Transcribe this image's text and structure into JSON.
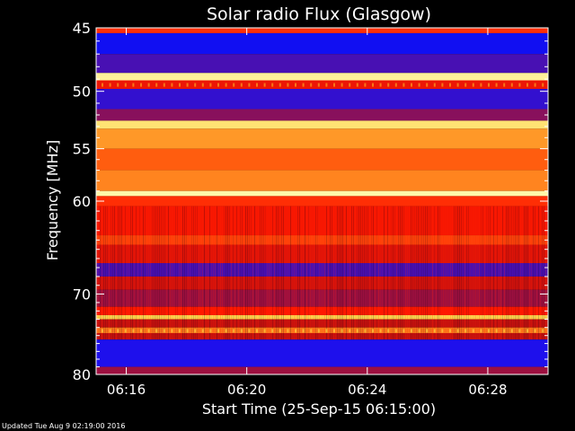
{
  "chart_data": {
    "type": "heatmap",
    "title": "Solar radio Flux (Glasgow)",
    "xlabel": "Start Time (25-Sep-15 06:15:00)",
    "ylabel": "Frequency [MHz]",
    "x_range": [
      "06:15:00",
      "06:30:00"
    ],
    "y_range": [
      45,
      80
    ],
    "y_scale": "log",
    "x_ticks": [
      "06:16",
      "06:20",
      "06:24",
      "06:28"
    ],
    "y_ticks": [
      45,
      50,
      55,
      60,
      70,
      80
    ],
    "colormap": [
      "#1a0a78",
      "#1010ff",
      "#c01010",
      "#ff1800",
      "#ff6010",
      "#ffd040",
      "#ffffc0"
    ],
    "frequency_bands": [
      {
        "f_start": 45.0,
        "f_end": 45.4,
        "level": 0.55
      },
      {
        "f_start": 45.4,
        "f_end": 47.0,
        "level": 0.15
      },
      {
        "f_start": 47.0,
        "f_end": 48.5,
        "level": 0.22
      },
      {
        "f_start": 48.5,
        "f_end": 49.1,
        "level": 0.95
      },
      {
        "f_start": 49.1,
        "f_end": 49.8,
        "level": 0.45
      },
      {
        "f_start": 49.8,
        "f_end": 51.5,
        "level": 0.2
      },
      {
        "f_start": 51.5,
        "f_end": 52.5,
        "level": 0.28
      },
      {
        "f_start": 52.5,
        "f_end": 53.2,
        "level": 0.9
      },
      {
        "f_start": 53.2,
        "f_end": 55.0,
        "level": 0.75
      },
      {
        "f_start": 55.0,
        "f_end": 57.0,
        "level": 0.66
      },
      {
        "f_start": 57.0,
        "f_end": 59.0,
        "level": 0.72
      },
      {
        "f_start": 59.0,
        "f_end": 59.5,
        "level": 0.97
      },
      {
        "f_start": 59.5,
        "f_end": 60.5,
        "level": 0.55
      },
      {
        "f_start": 60.5,
        "f_end": 63.5,
        "level": 0.48
      },
      {
        "f_start": 63.5,
        "f_end": 64.5,
        "level": 0.6
      },
      {
        "f_start": 64.5,
        "f_end": 66.5,
        "level": 0.42
      },
      {
        "f_start": 66.5,
        "f_end": 68.0,
        "level": 0.22
      },
      {
        "f_start": 68.0,
        "f_end": 69.5,
        "level": 0.38
      },
      {
        "f_start": 69.5,
        "f_end": 71.5,
        "level": 0.3
      },
      {
        "f_start": 71.5,
        "f_end": 72.5,
        "level": 0.5
      },
      {
        "f_start": 72.5,
        "f_end": 73.0,
        "level": 0.85
      },
      {
        "f_start": 73.0,
        "f_end": 74.0,
        "level": 0.35
      },
      {
        "f_start": 74.0,
        "f_end": 74.7,
        "level": 0.7
      },
      {
        "f_start": 74.7,
        "f_end": 75.5,
        "level": 0.35
      },
      {
        "f_start": 75.5,
        "f_end": 79.0,
        "level": 0.18
      },
      {
        "f_start": 79.0,
        "f_end": 80.0,
        "level": 0.3
      }
    ]
  },
  "footer": {
    "updated": "Updated Tue Aug  9 02:19:00 2016"
  }
}
